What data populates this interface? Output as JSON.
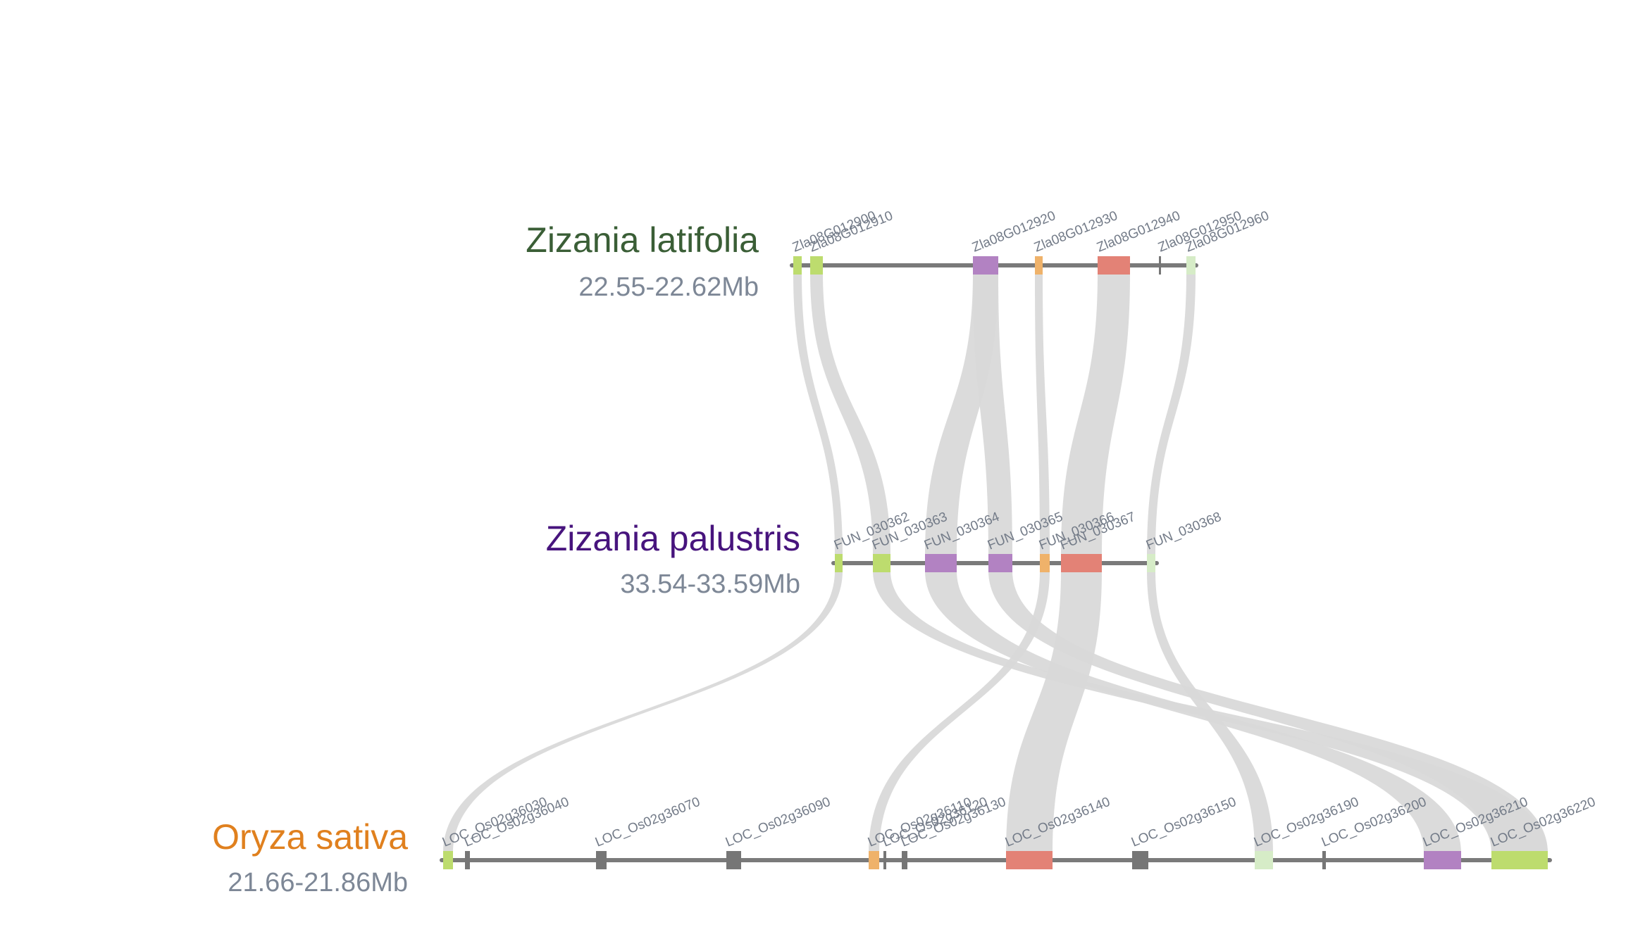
{
  "tracks": [
    {
      "id": "zl",
      "species": "Zizania latifolia",
      "range": "22.55-22.62Mb",
      "color": "#3a5e36",
      "genes": [
        {
          "id": "Zla08G012900",
          "color": "#bddc6e"
        },
        {
          "id": "Zla08G012910",
          "color": "#bddc6e"
        },
        {
          "id": "Zla08G012920",
          "color": "#b282c2"
        },
        {
          "id": "Zla08G012930",
          "color": "#efb26a"
        },
        {
          "id": "Zla08G012940",
          "color": "#e38276"
        },
        {
          "id": "Zla08G012950",
          "color": "#767676"
        },
        {
          "id": "Zla08G012960",
          "color": "#d6ecc7"
        }
      ]
    },
    {
      "id": "zp",
      "species": "Zizania palustris",
      "range": "33.54-33.59Mb",
      "color": "#47147d",
      "genes": [
        {
          "id": "FUN_030362",
          "color": "#bddc6e"
        },
        {
          "id": "FUN_030363",
          "color": "#bddc6e"
        },
        {
          "id": "FUN_030364",
          "color": "#b282c2"
        },
        {
          "id": "FUN_030365",
          "color": "#b282c2"
        },
        {
          "id": "FUN_030366",
          "color": "#efb26a"
        },
        {
          "id": "FUN_030367",
          "color": "#e38276"
        },
        {
          "id": "FUN_030368",
          "color": "#d6ecc7"
        }
      ]
    },
    {
      "id": "os",
      "species": "Oryza sativa",
      "range": "21.66-21.86Mb",
      "color": "#e0801e",
      "genes": [
        {
          "id": "LOC_Os02g36030",
          "color": "#bddc6e"
        },
        {
          "id": "LOC_Os02g36040",
          "color": "#767676"
        },
        {
          "id": "LOC_Os02g36070",
          "color": "#767676"
        },
        {
          "id": "LOC_Os02g36090",
          "color": "#767676"
        },
        {
          "id": "LOC_Os02g36110",
          "color": "#efb26a"
        },
        {
          "id": "LOC_Os02g36120",
          "color": "#767676"
        },
        {
          "id": "LOC_Os02g36130",
          "color": "#767676"
        },
        {
          "id": "LOC_Os02g36140",
          "color": "#e38276"
        },
        {
          "id": "LOC_Os02g36150",
          "color": "#767676"
        },
        {
          "id": "LOC_Os02g36190",
          "color": "#d6ecc7"
        },
        {
          "id": "LOC_Os02g36200",
          "color": "#767676"
        },
        {
          "id": "LOC_Os02g36210",
          "color": "#b282c2"
        },
        {
          "id": "LOC_Os02g36220",
          "color": "#bddc6e"
        }
      ]
    }
  ],
  "links": [
    {
      "from": "Zla08G012900",
      "to": "FUN_030362"
    },
    {
      "from": "Zla08G012910",
      "to": "FUN_030363"
    },
    {
      "from": "Zla08G012920",
      "to": "FUN_030364"
    },
    {
      "from": "Zla08G012920",
      "to": "FUN_030365"
    },
    {
      "from": "Zla08G012930",
      "to": "FUN_030366"
    },
    {
      "from": "Zla08G012940",
      "to": "FUN_030367"
    },
    {
      "from": "Zla08G012960",
      "to": "FUN_030368"
    },
    {
      "from": "FUN_030362",
      "to": "LOC_Os02g36030"
    },
    {
      "from": "FUN_030363",
      "to": "LOC_Os02g36220"
    },
    {
      "from": "FUN_030364",
      "to": "LOC_Os02g36210"
    },
    {
      "from": "FUN_030365",
      "to": "LOC_Os02g36220"
    },
    {
      "from": "FUN_030366",
      "to": "LOC_Os02g36110"
    },
    {
      "from": "FUN_030367",
      "to": "LOC_Os02g36140"
    },
    {
      "from": "FUN_030368",
      "to": "LOC_Os02g36190"
    }
  ],
  "colors": {
    "backbone": "#7a7a7a",
    "ribbon": "#d9d9d9",
    "gene_label": "#737b88",
    "range_label": "#7d8796"
  }
}
